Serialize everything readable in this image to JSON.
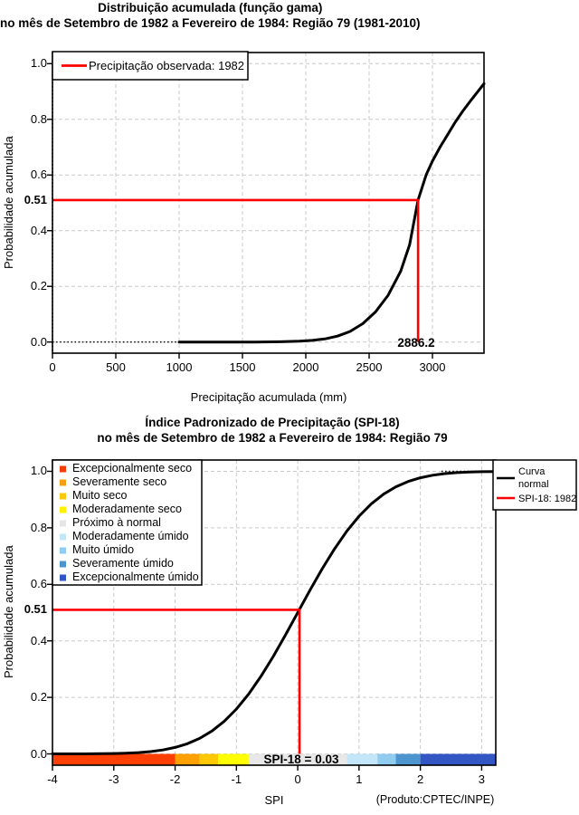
{
  "page": {
    "background": "#FFFFFF"
  },
  "chart_data": [
    {
      "type": "line",
      "title": "Distribuição acumulada (função gama)",
      "subtitle": "no mês de Setembro de 1982 a Fevereiro de 1984: Região 79 (1981-2010)",
      "xlabel": "Precipitação acumulada (mm)",
      "ylabel": "Probabilidade acumulada",
      "xlim": [
        0,
        3407
      ],
      "ylim": [
        0,
        1
      ],
      "xticks": [
        0,
        500,
        1000,
        1500,
        2000,
        2500,
        3000
      ],
      "yticks": [
        0,
        0.2,
        0.4,
        0.6,
        0.8,
        1
      ],
      "ytick_highlight": {
        "value": 0.51,
        "label": "0.51"
      },
      "grid": true,
      "legend": {
        "position": "top-left",
        "entries": [
          {
            "label": "Precipitação observada: 1982",
            "color": "#FF0000",
            "type": "line"
          }
        ]
      },
      "series": [
        {
          "name": "Distribuição acumulada (função gama)",
          "color": "#000000",
          "points": [
            [
              1000,
              0
            ],
            [
              1300,
              0
            ],
            [
              1600,
              0
            ],
            [
              1800,
              0.001
            ],
            [
              1950,
              0.003
            ],
            [
              2050,
              0.006
            ],
            [
              2150,
              0.011
            ],
            [
              2250,
              0.021
            ],
            [
              2350,
              0.038
            ],
            [
              2450,
              0.066
            ],
            [
              2550,
              0.108
            ],
            [
              2650,
              0.168
            ],
            [
              2750,
              0.255
            ],
            [
              2820,
              0.35
            ],
            [
              2886.2,
              0.51
            ],
            [
              2950,
              0.6
            ],
            [
              3000,
              0.65
            ],
            [
              3060,
              0.7
            ],
            [
              3120,
              0.745
            ],
            [
              3180,
              0.79
            ],
            [
              3240,
              0.83
            ],
            [
              3300,
              0.866
            ],
            [
              3350,
              0.895
            ],
            [
              3407,
              0.928
            ]
          ]
        }
      ],
      "reference": {
        "x": 2886.2,
        "y": 0.51,
        "x_label": "2886.2",
        "color": "#FF0000"
      }
    },
    {
      "type": "line",
      "title": "Índice Padronizado de Precipitação (SPI-18)",
      "subtitle": "no mês de Setembro de 1982 a Fevereiro de 1984: Região 79",
      "xlabel": "SPI",
      "ylabel": "Probabilidade acumulada",
      "credit": "(Produto:CPTEC/INPE)",
      "xlim": [
        -4,
        3.23
      ],
      "ylim": [
        0,
        1
      ],
      "xticks": [
        -4,
        -3,
        -2,
        -1,
        0,
        1,
        2,
        3
      ],
      "yticks": [
        0,
        0.2,
        0.4,
        0.6,
        0.8,
        1
      ],
      "ytick_highlight": {
        "value": 0.51,
        "label": "0.51"
      },
      "grid": true,
      "category_legend": {
        "entries": [
          {
            "label": "Excepcionalmente seco",
            "color": "#F43B0A"
          },
          {
            "label": "Severamente seco",
            "color": "#F89E14"
          },
          {
            "label": "Muito seco",
            "color": "#F6C80E"
          },
          {
            "label": "Moderadamente seco",
            "color": "#FFF000"
          },
          {
            "label": "Próximo à normal",
            "color": "#E6E6E6"
          },
          {
            "label": "Moderadamente úmido",
            "color": "#C3E7F8"
          },
          {
            "label": "Muito úmido",
            "color": "#8FCCEF"
          },
          {
            "label": "Severamente úmido",
            "color": "#4C95CF"
          },
          {
            "label": "Excepcionalmente úmido",
            "color": "#3356C5"
          }
        ]
      },
      "line_legend": {
        "entries": [
          {
            "lines": [
              "Curva",
              "normal"
            ],
            "color": "#000000"
          },
          {
            "lines": [
              "SPI-18: 1982"
            ],
            "color": "#FF0000"
          }
        ]
      },
      "series": [
        {
          "name": "Curva normal",
          "color": "#000000",
          "points": [
            [
              -4,
              0
            ],
            [
              -3.5,
              0.0002
            ],
            [
              -3,
              0.0013
            ],
            [
              -2.8,
              0.0026
            ],
            [
              -2.6,
              0.0047
            ],
            [
              -2.4,
              0.0082
            ],
            [
              -2.2,
              0.0139
            ],
            [
              -2,
              0.0228
            ],
            [
              -1.8,
              0.0359
            ],
            [
              -1.6,
              0.0548
            ],
            [
              -1.4,
              0.0808
            ],
            [
              -1.2,
              0.1151
            ],
            [
              -1,
              0.1587
            ],
            [
              -0.8,
              0.2119
            ],
            [
              -0.6,
              0.2743
            ],
            [
              -0.4,
              0.3446
            ],
            [
              -0.2,
              0.4207
            ],
            [
              0,
              0.5
            ],
            [
              0.2,
              0.5793
            ],
            [
              0.4,
              0.6554
            ],
            [
              0.6,
              0.7257
            ],
            [
              0.8,
              0.7881
            ],
            [
              1,
              0.8413
            ],
            [
              1.2,
              0.8849
            ],
            [
              1.4,
              0.9192
            ],
            [
              1.6,
              0.9452
            ],
            [
              1.8,
              0.9641
            ],
            [
              2,
              0.9772
            ],
            [
              2.2,
              0.9861
            ],
            [
              2.4,
              0.9918
            ],
            [
              2.6,
              0.9953
            ],
            [
              2.8,
              0.9974
            ],
            [
              3,
              0.9987
            ],
            [
              3.23,
              0.9994
            ]
          ]
        }
      ],
      "reference": {
        "x": 0.03,
        "y": 0.51,
        "label": "SPI-18 = 0.03",
        "color": "#FF0000"
      },
      "spi_bar": {
        "segments": [
          {
            "from": -4,
            "to": -2,
            "color": "#FF4005"
          },
          {
            "from": -2,
            "to": -1.6,
            "color": "#FFA000"
          },
          {
            "from": -1.6,
            "to": -1.3,
            "color": "#FFC800"
          },
          {
            "from": -1.3,
            "to": -0.8,
            "color": "#FFFF00"
          },
          {
            "from": -0.8,
            "to": 0.8,
            "color": "#E8E8E8"
          },
          {
            "from": 0.8,
            "to": 1.3,
            "color": "#C3E7F8"
          },
          {
            "from": 1.3,
            "to": 1.6,
            "color": "#8FCCEF"
          },
          {
            "from": 1.6,
            "to": 2,
            "color": "#4C95CF"
          },
          {
            "from": 2,
            "to": 3.23,
            "color": "#3356C5"
          }
        ]
      }
    }
  ]
}
